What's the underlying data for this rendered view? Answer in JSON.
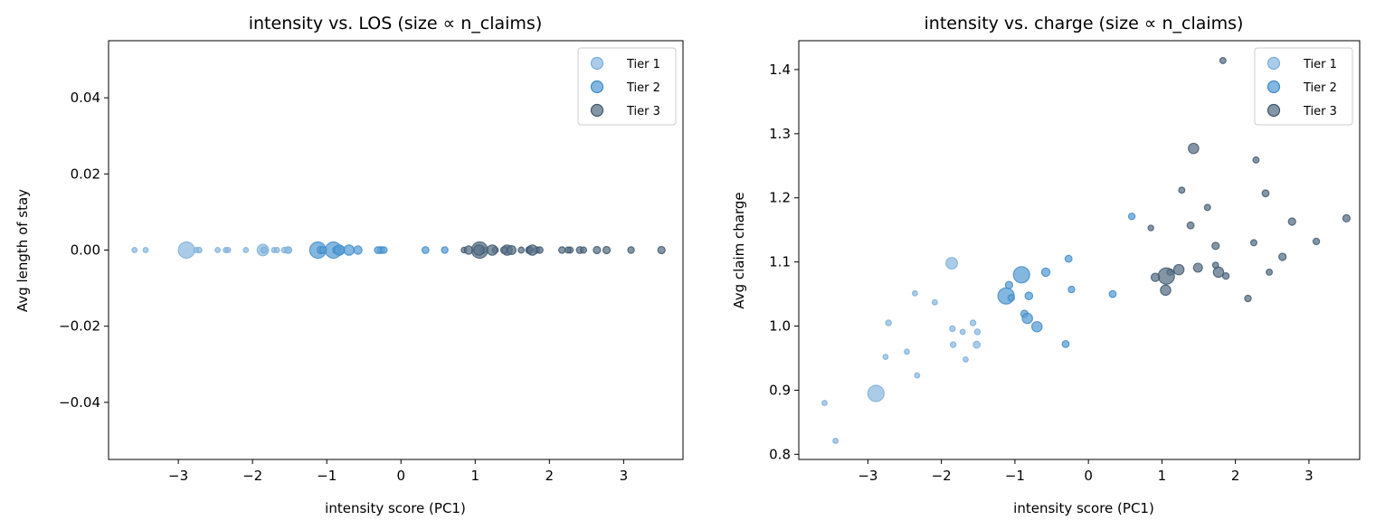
{
  "chart_data": [
    {
      "type": "scatter",
      "title": "intensity vs. LOS (size ∝ n_claims)",
      "xlabel": "intensity score (PC1)",
      "ylabel": "Avg length of stay",
      "xlim": [
        -3.94,
        3.8
      ],
      "ylim": [
        -0.055,
        0.055
      ],
      "xticks": [
        -3,
        -2,
        -1,
        0,
        1,
        2,
        3
      ],
      "xtick_labels": [
        "−3",
        "−2",
        "−1",
        "0",
        "1",
        "2",
        "3"
      ],
      "yticks": [
        -0.04,
        -0.02,
        0,
        0.02,
        0.04
      ],
      "ytick_labels": [
        "−0.04",
        "−0.02",
        "0.00",
        "0.02",
        "0.04"
      ],
      "grid": false,
      "legend_position": "top-right",
      "series_ref": "same x and marker sizes as chart 2, y = 0 for all points"
    },
    {
      "type": "scatter",
      "title": "intensity vs. charge (size ∝ n_claims)",
      "xlabel": "intensity score (PC1)",
      "ylabel": "Avg claim charge",
      "xlim": [
        -3.94,
        3.69
      ],
      "ylim": [
        0.792,
        1.445
      ],
      "xticks": [
        -3,
        -2,
        -1,
        0,
        1,
        2,
        3
      ],
      "xtick_labels": [
        "−3",
        "−2",
        "−1",
        "0",
        "1",
        "2",
        "3"
      ],
      "yticks": [
        0.8,
        0.9,
        1.0,
        1.1,
        1.2,
        1.3,
        1.4
      ],
      "ytick_labels": [
        "0.8",
        "0.9",
        "1.0",
        "1.1",
        "1.2",
        "1.3",
        "1.4"
      ],
      "grid": false,
      "legend_position": "top-right"
    }
  ],
  "series": [
    {
      "name": "Tier 1",
      "color": "#8fbbe0",
      "edge": "#7aaed8",
      "alpha": 0.75,
      "points": [
        [
          -1.86,
          1.098,
          50
        ],
        [
          -2.36,
          1.051,
          10
        ],
        [
          -2.09,
          1.037,
          10
        ],
        [
          -2.72,
          1.005,
          12
        ],
        [
          -1.85,
          0.996,
          12
        ],
        [
          -1.71,
          0.991,
          10
        ],
        [
          -1.57,
          1.005,
          12
        ],
        [
          -1.51,
          0.991,
          12
        ],
        [
          -1.84,
          0.971,
          12
        ],
        [
          -1.52,
          0.971,
          18
        ],
        [
          -1.67,
          0.948,
          10
        ],
        [
          -2.47,
          0.96,
          10
        ],
        [
          -2.76,
          0.952,
          10
        ],
        [
          -2.33,
          0.923,
          10
        ],
        [
          -2.89,
          0.895,
          100
        ],
        [
          -3.59,
          0.88,
          10
        ],
        [
          -3.44,
          0.821,
          10
        ]
      ]
    },
    {
      "name": "Tier 2",
      "color": "#5a9fd4",
      "edge": "#3f8ac8",
      "alpha": 0.75,
      "points": [
        [
          -0.91,
          1.08,
          100
        ],
        [
          -1.12,
          1.047,
          100
        ],
        [
          -1.08,
          1.064,
          20
        ],
        [
          -1.05,
          1.044,
          16
        ],
        [
          -0.81,
          1.047,
          22
        ],
        [
          -0.58,
          1.084,
          26
        ],
        [
          -0.27,
          1.105,
          18
        ],
        [
          -0.23,
          1.057,
          16
        ],
        [
          -0.87,
          1.019,
          20
        ],
        [
          -0.83,
          1.012,
          40
        ],
        [
          -0.7,
          0.999,
          40
        ],
        [
          -0.31,
          0.972,
          18
        ],
        [
          0.59,
          1.171,
          16
        ],
        [
          0.33,
          1.05,
          18
        ]
      ]
    },
    {
      "name": "Tier 3",
      "color": "#5b7388",
      "edge": "#3d566c",
      "alpha": 0.75,
      "points": [
        [
          1.83,
          1.414,
          14
        ],
        [
          1.43,
          1.277,
          40
        ],
        [
          2.28,
          1.259,
          14
        ],
        [
          1.27,
          1.212,
          14
        ],
        [
          2.41,
          1.207,
          18
        ],
        [
          1.62,
          1.185,
          14
        ],
        [
          0.85,
          1.153,
          12
        ],
        [
          1.39,
          1.157,
          18
        ],
        [
          2.77,
          1.163,
          20
        ],
        [
          3.51,
          1.168,
          20
        ],
        [
          2.25,
          1.13,
          14
        ],
        [
          3.1,
          1.132,
          16
        ],
        [
          1.73,
          1.125,
          20
        ],
        [
          2.64,
          1.108,
          20
        ],
        [
          1.73,
          1.095,
          14
        ],
        [
          1.23,
          1.088,
          40
        ],
        [
          1.49,
          1.091,
          30
        ],
        [
          1.11,
          1.084,
          16
        ],
        [
          1.06,
          1.078,
          100
        ],
        [
          0.91,
          1.076,
          26
        ],
        [
          1.77,
          1.084,
          40
        ],
        [
          1.87,
          1.078,
          16
        ],
        [
          2.46,
          1.084,
          14
        ],
        [
          1.05,
          1.056,
          40
        ],
        [
          2.17,
          1.043,
          16
        ]
      ]
    }
  ]
}
